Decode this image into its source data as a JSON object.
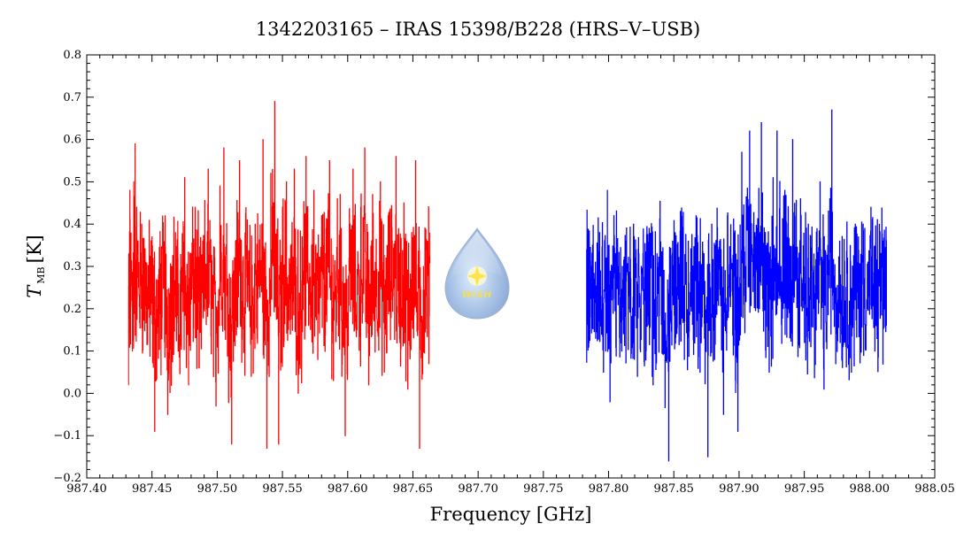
{
  "chart_data": {
    "type": "line",
    "title": "1342203165 – IRAS 15398/B228 (HRS–V–USB)",
    "xlabel": "Frequency [GHz]",
    "ylabel": {
      "symbol": "T",
      "subscript": "MB",
      "unit": "[K]"
    },
    "xlim": [
      987.4,
      988.05
    ],
    "ylim": [
      -0.2,
      0.8
    ],
    "x_ticks": [
      "987.40",
      "987.45",
      "987.50",
      "987.55",
      "987.60",
      "987.65",
      "987.70",
      "987.75",
      "987.80",
      "987.85",
      "987.90",
      "987.95",
      "988.00",
      "988.05"
    ],
    "y_ticks": [
      "−0.2",
      "−0.1",
      "0.0",
      "0.1",
      "0.2",
      "0.3",
      "0.4",
      "0.5",
      "0.6",
      "0.7",
      "0.8"
    ],
    "grid": false,
    "series": [
      {
        "color": "#ff0000",
        "x_range": [
          987.432,
          987.663
        ],
        "baseline": 0.22,
        "points": [
          [
            987.432,
            0.02
          ],
          [
            987.433,
            0.48
          ],
          [
            987.435,
            0.1
          ],
          [
            987.436,
            0.5
          ],
          [
            987.437,
            0.59
          ],
          [
            987.439,
            0.33
          ],
          [
            987.442,
            0.4
          ],
          [
            987.445,
            0.31
          ],
          [
            987.448,
            0.18
          ],
          [
            987.45,
            0.37
          ],
          [
            987.452,
            -0.09
          ],
          [
            987.455,
            0.28
          ],
          [
            987.457,
            0.16
          ],
          [
            987.46,
            0.42
          ],
          [
            987.462,
            -0.05
          ],
          [
            987.465,
            0.3
          ],
          [
            987.468,
            0.38
          ],
          [
            987.47,
            0.1
          ],
          [
            987.473,
            0.24
          ],
          [
            987.475,
            0.51
          ],
          [
            987.478,
            0.02
          ],
          [
            987.48,
            0.29
          ],
          [
            987.483,
            0.44
          ],
          [
            987.486,
            0.06
          ],
          [
            987.49,
            0.33
          ],
          [
            987.493,
            0.53
          ],
          [
            987.496,
            0.2
          ],
          [
            987.499,
            -0.03
          ],
          [
            987.502,
            0.49
          ],
          [
            987.505,
            0.58
          ],
          [
            987.508,
            0.27
          ],
          [
            987.511,
            -0.12
          ],
          [
            987.514,
            0.36
          ],
          [
            987.517,
            0.55
          ],
          [
            987.52,
            0.18
          ],
          [
            987.523,
            0.41
          ],
          [
            987.526,
            0.04
          ],
          [
            987.529,
            0.4
          ],
          [
            987.532,
            0.3
          ],
          [
            987.535,
            0.6
          ],
          [
            987.538,
            -0.13
          ],
          [
            987.541,
            0.52
          ],
          [
            987.544,
            0.69
          ],
          [
            987.547,
            -0.12
          ],
          [
            987.55,
            0.44
          ],
          [
            987.553,
            0.5
          ],
          [
            987.556,
            0.14
          ],
          [
            987.559,
            0.53
          ],
          [
            987.562,
            0.0
          ],
          [
            987.565,
            0.37
          ],
          [
            987.568,
            0.56
          ],
          [
            987.571,
            0.21
          ],
          [
            987.574,
            0.48
          ],
          [
            987.577,
            0.08
          ],
          [
            987.58,
            0.42
          ],
          [
            987.583,
            0.33
          ],
          [
            987.586,
            0.55
          ],
          [
            987.589,
            0.03
          ],
          [
            987.592,
            0.46
          ],
          [
            987.595,
            0.39
          ],
          [
            987.598,
            -0.1
          ],
          [
            987.601,
            0.32
          ],
          [
            987.604,
            0.53
          ],
          [
            987.607,
            0.15
          ],
          [
            987.61,
            0.44
          ],
          [
            987.613,
            0.58
          ],
          [
            987.616,
            0.02
          ],
          [
            987.619,
            0.47
          ],
          [
            987.622,
            0.28
          ],
          [
            987.625,
            0.5
          ],
          [
            987.628,
            0.05
          ],
          [
            987.631,
            0.42
          ],
          [
            987.634,
            0.36
          ],
          [
            987.637,
            0.56
          ],
          [
            987.64,
            0.12
          ],
          [
            987.643,
            0.45
          ],
          [
            987.646,
            0.01
          ],
          [
            987.649,
            0.38
          ],
          [
            987.652,
            0.55
          ],
          [
            987.655,
            -0.13
          ],
          [
            987.658,
            0.3
          ],
          [
            987.66,
            0.34
          ],
          [
            987.663,
            0.38
          ]
        ]
      },
      {
        "color": "#0000ff",
        "x_range": [
          987.783,
          988.013
        ],
        "baseline": 0.24,
        "points": [
          [
            987.783,
            0.34
          ],
          [
            987.785,
            0.12
          ],
          [
            987.787,
            0.3
          ],
          [
            987.79,
            0.13
          ],
          [
            987.793,
            0.38
          ],
          [
            987.796,
            0.05
          ],
          [
            987.799,
            0.48
          ],
          [
            987.801,
            -0.02
          ],
          [
            987.804,
            0.42
          ],
          [
            987.807,
            0.3
          ],
          [
            987.81,
            0.1
          ],
          [
            987.813,
            0.36
          ],
          [
            987.816,
            0.2
          ],
          [
            987.819,
            0.4
          ],
          [
            987.822,
            0.04
          ],
          [
            987.825,
            0.3
          ],
          [
            987.828,
            0.22
          ],
          [
            987.831,
            0.39
          ],
          [
            987.834,
            0.02
          ],
          [
            987.837,
            0.33
          ],
          [
            987.84,
            0.28
          ],
          [
            987.843,
            0.1
          ],
          [
            987.846,
            -0.16
          ],
          [
            987.849,
            0.36
          ],
          [
            987.852,
            0.22
          ],
          [
            987.855,
            0.43
          ],
          [
            987.858,
            0.08
          ],
          [
            987.861,
            0.36
          ],
          [
            987.864,
            0.2
          ],
          [
            987.867,
            0.42
          ],
          [
            987.87,
            0.05
          ],
          [
            987.873,
            0.33
          ],
          [
            987.876,
            -0.15
          ],
          [
            987.879,
            0.4
          ],
          [
            987.882,
            0.18
          ],
          [
            987.885,
            0.36
          ],
          [
            987.888,
            -0.05
          ],
          [
            987.891,
            0.42
          ],
          [
            987.894,
            0.3
          ],
          [
            987.897,
            0.15
          ],
          [
            987.899,
            -0.09
          ],
          [
            987.902,
            0.57
          ],
          [
            987.905,
            0.3
          ],
          [
            987.908,
            0.62
          ],
          [
            987.911,
            0.4
          ],
          [
            987.914,
            0.26
          ],
          [
            987.917,
            0.64
          ],
          [
            987.92,
            0.38
          ],
          [
            987.923,
            0.05
          ],
          [
            987.926,
            0.51
          ],
          [
            987.929,
            0.62
          ],
          [
            987.932,
            0.3
          ],
          [
            987.935,
            0.48
          ],
          [
            987.938,
            0.2
          ],
          [
            987.941,
            0.6
          ],
          [
            987.944,
            0.27
          ],
          [
            987.947,
            0.46
          ],
          [
            987.95,
            0.12
          ],
          [
            987.953,
            0.4
          ],
          [
            987.956,
            0.3
          ],
          [
            987.959,
            0.15
          ],
          [
            987.962,
            0.5
          ],
          [
            987.965,
            0.01
          ],
          [
            987.968,
            0.35
          ],
          [
            987.971,
            0.67
          ],
          [
            987.974,
            0.07
          ],
          [
            987.977,
            0.36
          ],
          [
            987.98,
            0.12
          ],
          [
            987.983,
            0.32
          ],
          [
            987.986,
            0.05
          ],
          [
            987.989,
            0.4
          ],
          [
            987.992,
            0.14
          ],
          [
            987.995,
            0.4
          ],
          [
            987.998,
            0.2
          ],
          [
            988.001,
            0.44
          ],
          [
            988.004,
            0.1
          ],
          [
            988.007,
            0.28
          ],
          [
            988.01,
            0.36
          ],
          [
            988.013,
            0.16
          ]
        ]
      }
    ],
    "logo": {
      "text": "WISH"
    }
  }
}
